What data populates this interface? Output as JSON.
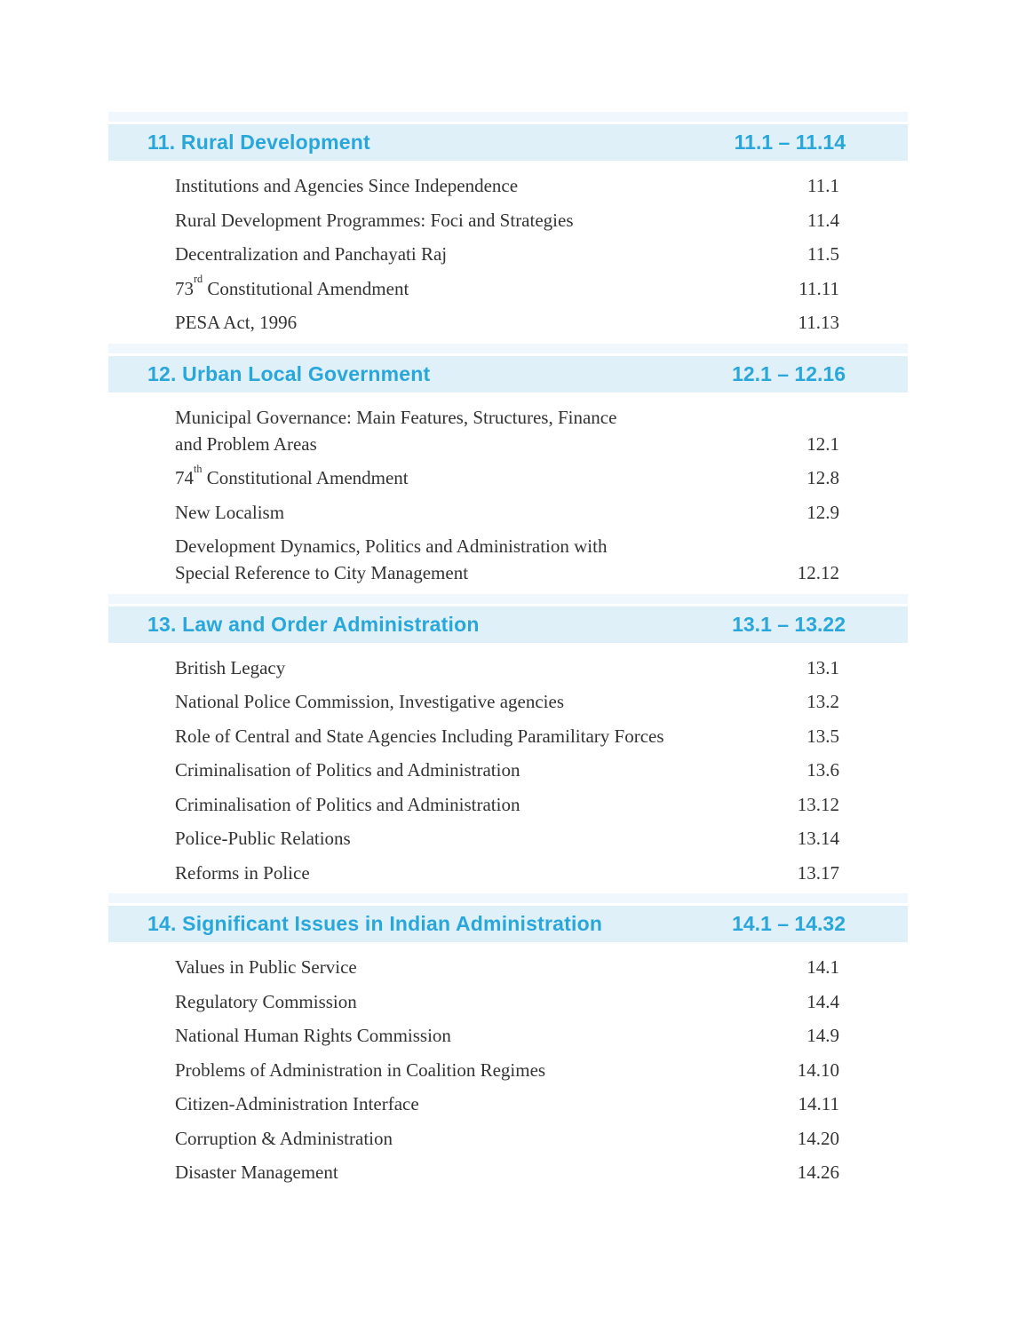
{
  "page": {
    "background": "#ffffff",
    "accent_color": "#29a7da",
    "header_bar_color": "#dff0f9",
    "header_strip_color": "#f1f8fd",
    "body_text_color": "#333333"
  },
  "toc_sections": [
    {
      "title": "11. Rural Development",
      "page_range": "11.1 – 11.14",
      "items": [
        {
          "lines": [
            "Institutions and Agencies Since Independence"
          ],
          "page": "11.1"
        },
        {
          "lines": [
            "Rural Development Programmes: Foci and Strategies"
          ],
          "page": "11.4"
        },
        {
          "lines": [
            "Decentralization and Panchayati Raj"
          ],
          "page": "11.5"
        },
        {
          "lines": [
            [
              "73",
              {
                "sup": "rd"
              },
              " Constitutional Amendment"
            ]
          ],
          "page": "11.11"
        },
        {
          "lines": [
            "PESA Act, 1996"
          ],
          "page": "11.13"
        }
      ]
    },
    {
      "title": "12. Urban Local Government",
      "page_range": "12.1 – 12.16",
      "items": [
        {
          "lines": [
            "Municipal Governance: Main Features, Structures, Finance",
            "and Problem Areas"
          ],
          "page": "12.1"
        },
        {
          "lines": [
            [
              "74",
              {
                "sup": "th"
              },
              " Constitutional Amendment"
            ]
          ],
          "page": "12.8"
        },
        {
          "lines": [
            "New Localism"
          ],
          "page": "12.9"
        },
        {
          "lines": [
            "Development Dynamics, Politics and Administration with",
            "Special Reference to City Management"
          ],
          "page": "12.12"
        }
      ]
    },
    {
      "title": "13. Law and Order Administration",
      "page_range": "13.1 – 13.22",
      "items": [
        {
          "lines": [
            "British Legacy"
          ],
          "page": "13.1"
        },
        {
          "lines": [
            "National Police Commission, Investigative agencies"
          ],
          "page": "13.2"
        },
        {
          "lines": [
            "Role of Central and State Agencies Including Paramilitary Forces"
          ],
          "page": "13.5"
        },
        {
          "lines": [
            "Criminalisation of Politics and Administration"
          ],
          "page": "13.6"
        },
        {
          "lines": [
            "Criminalisation of Politics and Administration"
          ],
          "page": "13.12"
        },
        {
          "lines": [
            "Police-Public Relations"
          ],
          "page": "13.14"
        },
        {
          "lines": [
            "Reforms in Police"
          ],
          "page": "13.17"
        }
      ]
    },
    {
      "title": "14. Significant Issues in Indian Administration",
      "page_range": "14.1 – 14.32",
      "items": [
        {
          "lines": [
            "Values in Public Service"
          ],
          "page": "14.1"
        },
        {
          "lines": [
            "Regulatory Commission"
          ],
          "page": "14.4"
        },
        {
          "lines": [
            "National Human Rights Commission"
          ],
          "page": "14.9"
        },
        {
          "lines": [
            "Problems of Administration in Coalition Regimes"
          ],
          "page": "14.10"
        },
        {
          "lines": [
            "Citizen-Administration Interface"
          ],
          "page": "14.11"
        },
        {
          "lines": [
            "Corruption & Administration"
          ],
          "page": "14.20"
        },
        {
          "lines": [
            "Disaster Management"
          ],
          "page": "14.26"
        }
      ]
    }
  ]
}
